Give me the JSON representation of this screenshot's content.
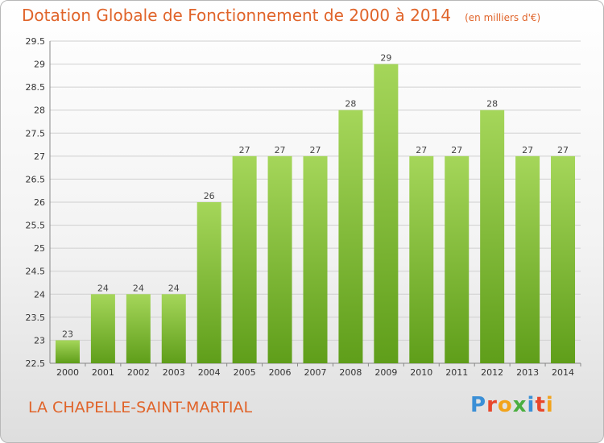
{
  "header": {
    "title": "Dotation Globale de Fonctionnement de 2000 à 2014",
    "unit": "(en milliers d'€)"
  },
  "footer": {
    "commune": "LA CHAPELLE-SAINT-MARTIAL",
    "logo_text": "Proxiti",
    "logo_colors": [
      "#3a8fd6",
      "#e8472b",
      "#f2a31b",
      "#4aae3f",
      "#3a8fd6",
      "#e8472b",
      "#f2a31b"
    ]
  },
  "colors": {
    "title": "#e0642a",
    "bar_light": "#a5d65a",
    "bar_dark": "#5f9e1a",
    "grid": "#d0d0d0"
  },
  "chart_data": {
    "type": "bar",
    "title": "Dotation Globale de Fonctionnement de 2000 à 2014",
    "subtitle": "(en milliers d'€)",
    "xlabel": "",
    "ylabel": "",
    "categories": [
      "2000",
      "2001",
      "2002",
      "2003",
      "2004",
      "2005",
      "2006",
      "2007",
      "2008",
      "2009",
      "2010",
      "2011",
      "2012",
      "2013",
      "2014"
    ],
    "values": [
      23,
      24,
      24,
      24,
      26,
      27,
      27,
      27,
      28,
      29,
      27,
      27,
      28,
      27,
      27
    ],
    "ylim": [
      22.5,
      29.5
    ],
    "yticks": [
      "22.5",
      "23",
      "23.5",
      "24",
      "24.5",
      "25",
      "25.5",
      "26",
      "26.5",
      "27",
      "27.5",
      "28",
      "28.5",
      "29",
      "29.5"
    ],
    "grid": true,
    "legend": "none"
  }
}
